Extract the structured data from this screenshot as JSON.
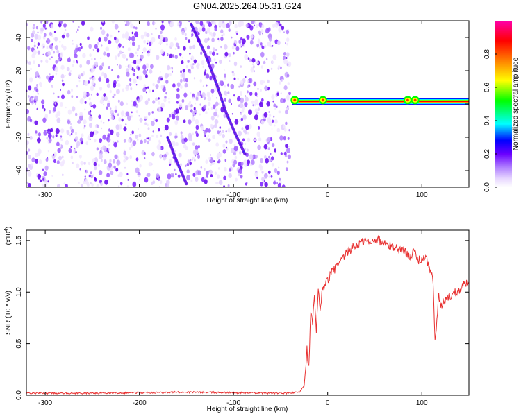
{
  "title": "GN04.2025.264.05.31.G24",
  "chart_data": [
    {
      "type": "heatmap",
      "xlabel": "Height of straight line (km)",
      "ylabel": "Frequency (Hz)",
      "xlim": [
        -320,
        150
      ],
      "ylim": [
        -50,
        50
      ],
      "xticks": [
        -300,
        -200,
        -100,
        0,
        100
      ],
      "yticks": [
        -40,
        -20,
        0,
        20,
        40
      ],
      "noise_region_x": [
        -320,
        -40
      ],
      "ridge_lines": [
        {
          "name": "",
          "points": [
            [
              -145,
              48
            ],
            [
              -130,
              30
            ],
            [
              -118,
              12
            ],
            [
              -108,
              -5
            ],
            [
              -98,
              -18
            ],
            [
              -88,
              -30
            ]
          ]
        },
        {
          "name": "",
          "points": [
            [
              -170,
              -20
            ],
            [
              -160,
              -35
            ],
            [
              -150,
              -48
            ]
          ]
        }
      ],
      "signal_band": {
        "y": 1.5,
        "x_start": -38,
        "x_end": 150,
        "peaks_x": [
          -35,
          -5,
          85,
          93
        ]
      },
      "colorbar": {
        "label": "Normalized spectral amplitude",
        "range": [
          0,
          1
        ],
        "ticks": [
          "0.0",
          "0.2",
          "0.4",
          "0.6",
          "0.8"
        ],
        "tick_values": [
          0,
          0.2,
          0.4,
          0.6,
          0.8
        ],
        "colors": [
          "#ffffff",
          "#cc99ff",
          "#7f00ff",
          "#0000ff",
          "#00ffff",
          "#00ff00",
          "#ffff00",
          "#ff8000",
          "#ff0000",
          "#ff00aa"
        ]
      }
    },
    {
      "type": "line",
      "xlabel": "Height of straight line (km)",
      "ylabel": "SNR (10 * v/v)",
      "multiplier_label": "(x10",
      "multiplier_exp": "4",
      "multiplier_close": ")",
      "xlim": [
        -320,
        150
      ],
      "ylim": [
        0.0,
        1.6
      ],
      "xticks": [
        -300,
        -200,
        -100,
        0,
        100
      ],
      "yticks": [
        "0.0",
        "0.5",
        "1.0",
        "1.5"
      ],
      "ytick_values": [
        0.0,
        0.5,
        1.0,
        1.5
      ],
      "color": "#e83030",
      "series": [
        {
          "name": "",
          "x": [
            -320,
            -250,
            -150,
            -60,
            -40,
            -30,
            -25,
            -22,
            -20,
            -18,
            -16,
            -14,
            -12,
            -10,
            -8,
            -5,
            0,
            5,
            10,
            15,
            20,
            25,
            30,
            35,
            40,
            45,
            50,
            55,
            60,
            65,
            70,
            75,
            80,
            85,
            88,
            92,
            96,
            100,
            104,
            108,
            112,
            114,
            116,
            118,
            120,
            124,
            128,
            132,
            136,
            140,
            145,
            150
          ],
          "y": [
            0.02,
            0.02,
            0.03,
            0.02,
            0.02,
            0.03,
            0.1,
            0.45,
            0.25,
            0.8,
            0.7,
            0.95,
            0.6,
            1.0,
            0.85,
            1.05,
            1.12,
            1.2,
            1.25,
            1.3,
            1.38,
            1.42,
            1.45,
            1.48,
            1.5,
            1.47,
            1.52,
            1.5,
            1.47,
            1.45,
            1.44,
            1.42,
            1.4,
            1.38,
            1.35,
            1.4,
            1.3,
            1.33,
            1.32,
            1.25,
            1.1,
            0.5,
            0.75,
            0.95,
            0.85,
            0.92,
            0.95,
            0.98,
            1.0,
            1.03,
            1.08,
            1.1
          ]
        }
      ]
    }
  ]
}
